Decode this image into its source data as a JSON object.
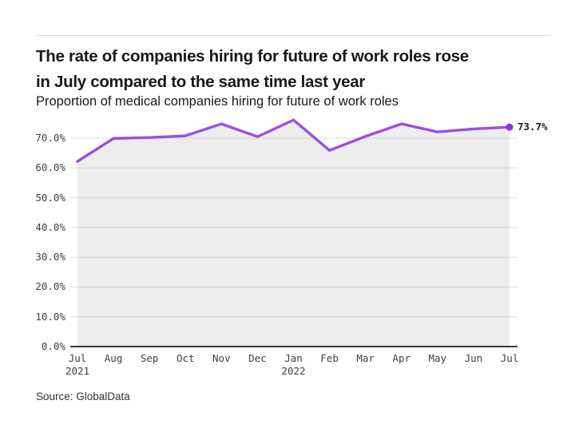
{
  "page": {
    "title_lines": [
      "The rate of companies hiring for future of work roles rose",
      "in July compared to the same time last year"
    ],
    "subtitle": "Proportion of medical companies hiring for future of work roles",
    "source": "Source: GlobalData"
  },
  "colors": {
    "line": "#9d4fe0",
    "dot": "#8d35cc",
    "grid": "#e0e0e0",
    "axis": "#3a3a3a",
    "area": "rgba(0,0,0,0.07)"
  },
  "chart_data": {
    "type": "line",
    "title": "The rate of companies hiring for future of work roles rose in July compared to the same time last year",
    "subtitle": "Proportion of medical companies hiring for future of work roles",
    "categories": [
      "Jul",
      "Aug",
      "Sep",
      "Oct",
      "Nov",
      "Dec",
      "Jan",
      "Feb",
      "Mar",
      "Apr",
      "May",
      "Jun",
      "Jul"
    ],
    "year_labels": {
      "0": "2021",
      "6": "2022"
    },
    "series": [
      {
        "name": "Proportion of medical companies hiring for future of work roles",
        "values": [
          62.2,
          69.9,
          70.2,
          70.8,
          74.8,
          70.5,
          76.1,
          65.9,
          70.6,
          74.8,
          72.1,
          73.1,
          73.7
        ]
      }
    ],
    "end_label": "73.7%",
    "yticks": [
      "0.0%",
      "10.0%",
      "20.0%",
      "30.0%",
      "40.0%",
      "50.0%",
      "60.0%",
      "70.0%"
    ],
    "ylim": [
      0,
      77
    ],
    "xlabel": "",
    "ylabel": "",
    "grid": true,
    "legend": "none"
  }
}
